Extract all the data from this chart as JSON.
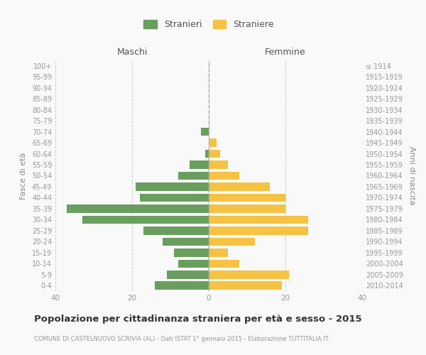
{
  "age_groups": [
    "0-4",
    "5-9",
    "10-14",
    "15-19",
    "20-24",
    "25-29",
    "30-34",
    "35-39",
    "40-44",
    "45-49",
    "50-54",
    "55-59",
    "60-64",
    "65-69",
    "70-74",
    "75-79",
    "80-84",
    "85-89",
    "90-94",
    "95-99",
    "100+"
  ],
  "birth_years": [
    "2010-2014",
    "2005-2009",
    "2000-2004",
    "1995-1999",
    "1990-1994",
    "1985-1989",
    "1980-1984",
    "1975-1979",
    "1970-1974",
    "1965-1969",
    "1960-1964",
    "1955-1959",
    "1950-1954",
    "1945-1949",
    "1940-1944",
    "1935-1939",
    "1930-1934",
    "1925-1929",
    "1920-1924",
    "1915-1919",
    "≤ 1914"
  ],
  "males": [
    14,
    11,
    8,
    9,
    12,
    17,
    33,
    37,
    18,
    19,
    8,
    5,
    1,
    0,
    2,
    0,
    0,
    0,
    0,
    0,
    0
  ],
  "females": [
    19,
    21,
    8,
    5,
    12,
    26,
    26,
    20,
    20,
    16,
    8,
    5,
    3,
    2,
    0,
    0,
    0,
    0,
    0,
    0,
    0
  ],
  "male_color": "#6a9e5f",
  "female_color": "#f5c243",
  "background_color": "#f9f9f9",
  "grid_color": "#cccccc",
  "title": "Popolazione per cittadinanza straniera per età e sesso - 2015",
  "subtitle": "COMUNE DI CASTELNUOVO SCRIVIA (AL) - Dati ISTAT 1° gennaio 2015 - Elaborazione TUTTITALIA.IT",
  "xlabel_left": "Maschi",
  "xlabel_right": "Femmine",
  "ylabel_left": "Fasce di età",
  "ylabel_right": "Anni di nascita",
  "legend_male": "Stranieri",
  "legend_female": "Straniere",
  "xlim": 40
}
